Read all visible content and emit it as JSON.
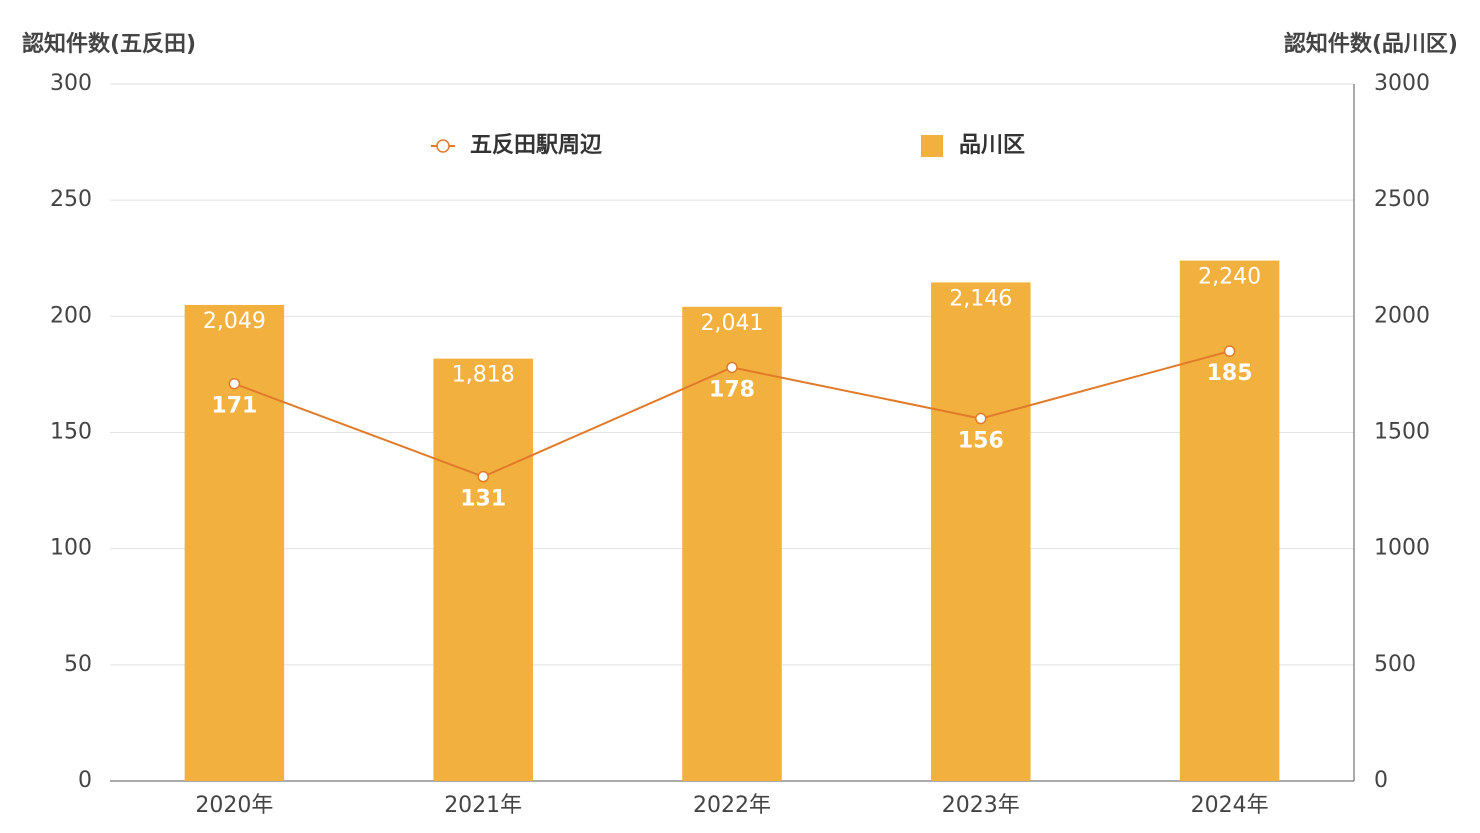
{
  "chart_data": {
    "type": "combo",
    "y_label": "認知件数(五反田)",
    "y2_label": "認知件数(品川区)",
    "categories": [
      "2020年",
      "2021年",
      "2022年",
      "2023年",
      "2024年"
    ],
    "series": [
      {
        "name": "五反田駅周辺",
        "type": "line",
        "color": "#E07B2A",
        "values": [
          171,
          131,
          178,
          156,
          185
        ]
      },
      {
        "name": "品川区",
        "type": "bar",
        "axis": "y2",
        "color": "#F2B13E",
        "values": [
          2049,
          1818,
          2041,
          2146,
          2240
        ],
        "value_labels": [
          "2,049",
          "1,818",
          "2,041",
          "2,146",
          "2,240"
        ]
      }
    ],
    "ylim": [
      0,
      300
    ],
    "yticks": [
      0,
      50,
      100,
      150,
      200,
      250,
      300
    ],
    "y2lim": [
      0,
      3000
    ],
    "y2ticks": [
      0,
      500,
      1000,
      1500,
      2000,
      2500,
      3000
    ],
    "grid": true
  }
}
